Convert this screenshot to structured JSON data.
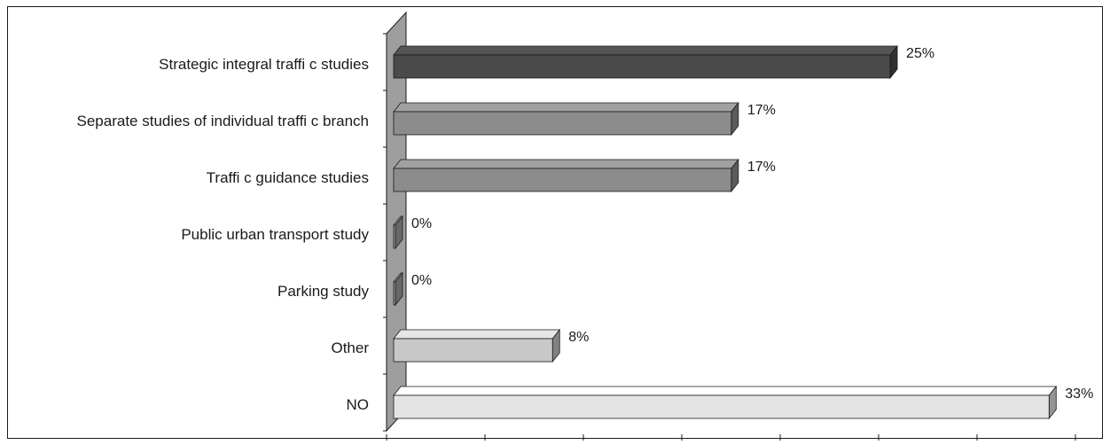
{
  "chart_data": {
    "type": "bar",
    "orientation": "horizontal",
    "style": "3d",
    "title": "",
    "xlabel": "",
    "ylabel": "",
    "categories": [
      "Strategic integral traffi c studies",
      "Separate studies of individual traffi c branch",
      "Traffi c guidance studies",
      "Public urban transport study",
      "Parking study",
      "Other",
      "NO"
    ],
    "values": [
      25,
      17,
      17,
      0,
      0,
      8,
      33
    ],
    "value_labels": [
      "25%",
      "17%",
      "17%",
      "0%",
      "0%",
      "8%",
      "33%"
    ],
    "bar_colors": [
      "#4a4a4a",
      "#8c8c8c",
      "#8c8c8c",
      "#a0a0a0",
      "#a0a0a0",
      "#c8c8c8",
      "#e4e4e4"
    ],
    "xlim": [
      0,
      35
    ],
    "x_ticks": 7,
    "grid": false,
    "legend": "none",
    "wall_color": "#9e9e9e"
  }
}
